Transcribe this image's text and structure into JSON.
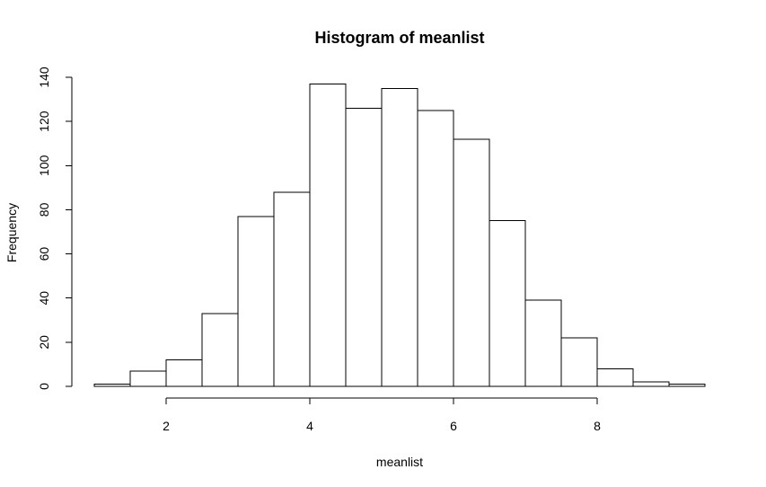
{
  "chart_data": {
    "type": "bar",
    "title": "Histogram of meanlist",
    "xlabel": "meanlist",
    "ylabel": "Frequency",
    "bin_edges": [
      1.0,
      1.5,
      2.0,
      2.5,
      3.0,
      3.5,
      4.0,
      4.5,
      5.0,
      5.5,
      6.0,
      6.5,
      7.0,
      7.5,
      8.0,
      8.5,
      9.0,
      9.5
    ],
    "counts": [
      1,
      7,
      12,
      33,
      77,
      88,
      137,
      126,
      135,
      125,
      112,
      75,
      39,
      22,
      8,
      2,
      1
    ],
    "xlim": [
      1.0,
      9.5
    ],
    "ylim": [
      0,
      140
    ],
    "xticks": [
      2,
      4,
      6,
      8
    ],
    "yticks": [
      0,
      20,
      40,
      60,
      80,
      100,
      120,
      140
    ],
    "grid": false,
    "legend": "none"
  }
}
